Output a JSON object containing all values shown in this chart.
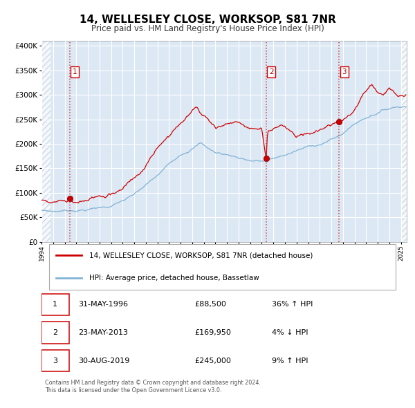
{
  "title": "14, WELLESLEY CLOSE, WORKSOP, S81 7NR",
  "subtitle": "Price paid vs. HM Land Registry's House Price Index (HPI)",
  "sale1_price": 88500,
  "sale1_label": "1",
  "sale1_year": 1996.42,
  "sale2_price": 169950,
  "sale2_label": "2",
  "sale2_year": 2013.38,
  "sale3_price": 245000,
  "sale3_label": "3",
  "sale3_year": 2019.67,
  "xmin": 1994.0,
  "xmax": 2025.5,
  "ymin": 0,
  "ymax": 410000,
  "yticks": [
    0,
    50000,
    100000,
    150000,
    200000,
    250000,
    300000,
    350000,
    400000
  ],
  "property_color": "#cc0000",
  "hpi_color": "#7fb3d3",
  "plot_bg_color": "#dde8f5",
  "grid_color": "#ffffff",
  "hatch_color": "#c0ccd8",
  "legend_property": "14, WELLESLEY CLOSE, WORKSOP, S81 7NR (detached house)",
  "legend_hpi": "HPI: Average price, detached house, Bassetlaw",
  "table_rows": [
    {
      "num": "1",
      "date": "31-MAY-1996",
      "price": "£88,500",
      "hpi": "36% ↑ HPI"
    },
    {
      "num": "2",
      "date": "23-MAY-2013",
      "price": "£169,950",
      "hpi": "4% ↓ HPI"
    },
    {
      "num": "3",
      "date": "30-AUG-2019",
      "price": "£245,000",
      "hpi": "9% ↑ HPI"
    }
  ],
  "footnote1": "Contains HM Land Registry data © Crown copyright and database right 2024.",
  "footnote2": "This data is licensed under the Open Government Licence v3.0."
}
